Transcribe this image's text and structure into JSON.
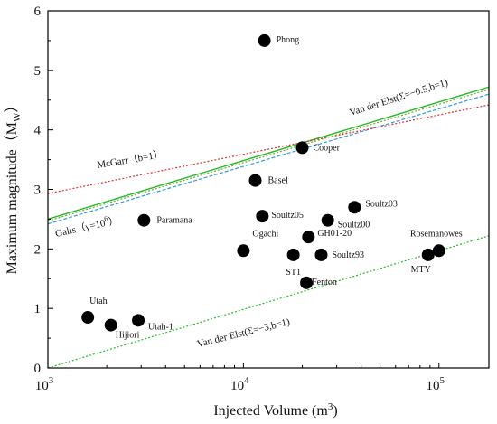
{
  "chart_data": {
    "type": "scatter",
    "xscale": "log",
    "xlim": [
      1000,
      180000
    ],
    "ylim": [
      0,
      6
    ],
    "grid": false,
    "xlabel_main": "Injected Volume (m",
    "xlabel_sup": "3",
    "xlabel_end": ")",
    "ylabel_main": "Maximum magnitude（M",
    "ylabel_sub": "W",
    "ylabel_end": "）",
    "x_ticks": [
      {
        "value": 1000,
        "base": "10",
        "exp": "3"
      },
      {
        "value": 10000,
        "base": "10",
        "exp": "4"
      },
      {
        "value": 100000,
        "base": "10",
        "exp": "5"
      }
    ],
    "y_ticks": [
      0,
      1,
      2,
      3,
      4,
      5,
      6
    ],
    "points": [
      {
        "label": "Phong",
        "x": 12800,
        "y": 5.5
      },
      {
        "label": "Cooper",
        "x": 20000,
        "y": 3.7
      },
      {
        "label": "Basel",
        "x": 11500,
        "y": 3.15
      },
      {
        "label": "Soultz03",
        "x": 37000,
        "y": 2.7
      },
      {
        "label": "Soultz05",
        "x": 12500,
        "y": 2.55
      },
      {
        "label": "Soultz00",
        "x": 27000,
        "y": 2.48
      },
      {
        "label": "Paramana",
        "x": 3100,
        "y": 2.48
      },
      {
        "label": "GH01-20",
        "x": 21500,
        "y": 2.2
      },
      {
        "label": "Ogachi",
        "x": 10000,
        "y": 1.97
      },
      {
        "label": "ST1",
        "x": 18000,
        "y": 1.9
      },
      {
        "label": "Soultz93",
        "x": 25000,
        "y": 1.9
      },
      {
        "label": "Fenton",
        "x": 21000,
        "y": 1.43
      },
      {
        "label": "Rosemanowes",
        "x": 100000,
        "y": 1.97
      },
      {
        "label": "MTY",
        "x": 88000,
        "y": 1.9
      },
      {
        "label": "Utah",
        "x": 1600,
        "y": 0.85
      },
      {
        "label": "Hijiori",
        "x": 2100,
        "y": 0.72
      },
      {
        "label": "Utah-1",
        "x": 2900,
        "y": 0.8
      }
    ],
    "lines": [
      {
        "name": "Van der Elst(Σ=−0.5,b=1)",
        "color": "#22bb22",
        "dash": "none",
        "points": [
          [
            1000,
            2.5
          ],
          [
            180000,
            4.72
          ]
        ]
      },
      {
        "name": "",
        "color": "#3399dd",
        "dash": "dashed",
        "points": [
          [
            1000,
            2.42
          ],
          [
            180000,
            4.6
          ]
        ]
      },
      {
        "name": "McGarr（b=1）",
        "color": "#e03030",
        "dash": "dotted",
        "points": [
          [
            1000,
            2.93
          ],
          [
            180000,
            4.42
          ]
        ]
      },
      {
        "name": "Galis（γ=10⁶）",
        "color": "#7aa040",
        "dash": "dotted",
        "points": [
          [
            1000,
            2.47
          ],
          [
            180000,
            4.68
          ]
        ]
      },
      {
        "name": "Van der Elst(Σ=−3,b=1)",
        "color": "#22bb22",
        "dash": "dotted",
        "points": [
          [
            1000,
            0.0
          ],
          [
            180000,
            2.22
          ]
        ]
      }
    ],
    "line_labels": {
      "vde05": "Van der Elst(Σ=−0.5,b=1)",
      "mcgarr": "McGarr（b=1）",
      "galis_main": "Galis（γ=10",
      "galis_sup": "6",
      "galis_end": "）",
      "vde3": "Van der Elst(Σ=−3,b=1)"
    }
  }
}
